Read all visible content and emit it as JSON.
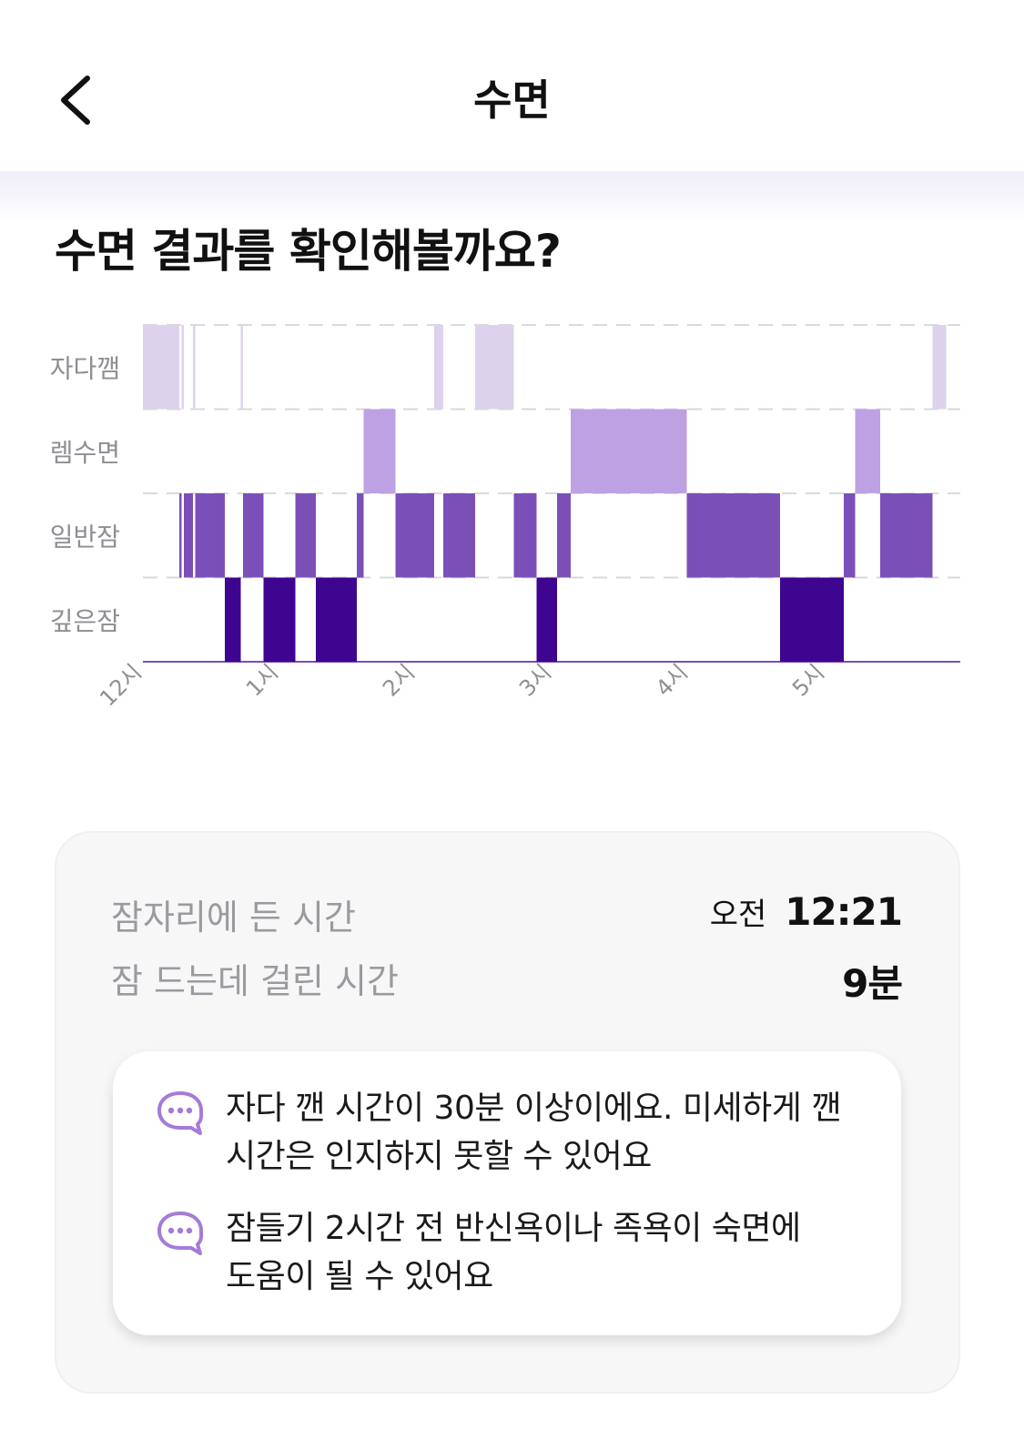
{
  "header": {
    "title": "수면",
    "back_icon": "chevron-left-icon"
  },
  "heading": "수면 결과를 확인해볼까요?",
  "chart_data": {
    "type": "hypnogram",
    "stages": [
      "자다깸",
      "렘수면",
      "일반잠",
      "깊은잠"
    ],
    "x_ticks": [
      "12시",
      "1시",
      "2시",
      "3시",
      "4시",
      "5시"
    ],
    "grid": true,
    "colors": {
      "자다깸": "#ddd2ec",
      "렘수면": "#bda1e2",
      "일반잠": "#7b4fb8",
      "깊은잠": "#3e0590"
    },
    "segments": [
      {
        "stage": "자다깸",
        "start": "00:00",
        "end": "00:16"
      },
      {
        "stage": "일반잠",
        "start": "00:16",
        "end": "00:17"
      },
      {
        "stage": "자다깸",
        "start": "00:17",
        "end": "00:18"
      },
      {
        "stage": "일반잠",
        "start": "00:18",
        "end": "00:22"
      },
      {
        "stage": "자다깸",
        "start": "00:22",
        "end": "00:23"
      },
      {
        "stage": "일반잠",
        "start": "00:23",
        "end": "00:36"
      },
      {
        "stage": "깊은잠",
        "start": "00:36",
        "end": "00:43"
      },
      {
        "stage": "자다깸",
        "start": "00:43",
        "end": "00:44"
      },
      {
        "stage": "일반잠",
        "start": "00:44",
        "end": "00:53"
      },
      {
        "stage": "깊은잠",
        "start": "00:53",
        "end": "01:07"
      },
      {
        "stage": "일반잠",
        "start": "01:07",
        "end": "01:16"
      },
      {
        "stage": "깊은잠",
        "start": "01:16",
        "end": "01:34"
      },
      {
        "stage": "일반잠",
        "start": "01:34",
        "end": "01:37"
      },
      {
        "stage": "렘수면",
        "start": "01:37",
        "end": "01:51"
      },
      {
        "stage": "일반잠",
        "start": "01:51",
        "end": "02:08"
      },
      {
        "stage": "자다깸",
        "start": "02:08",
        "end": "02:12"
      },
      {
        "stage": "일반잠",
        "start": "02:12",
        "end": "02:26"
      },
      {
        "stage": "자다깸",
        "start": "02:26",
        "end": "02:43"
      },
      {
        "stage": "일반잠",
        "start": "02:43",
        "end": "02:53"
      },
      {
        "stage": "깊은잠",
        "start": "02:53",
        "end": "03:02"
      },
      {
        "stage": "일반잠",
        "start": "03:02",
        "end": "03:08"
      },
      {
        "stage": "렘수면",
        "start": "03:08",
        "end": "03:59"
      },
      {
        "stage": "일반잠",
        "start": "03:59",
        "end": "04:40"
      },
      {
        "stage": "깊은잠",
        "start": "04:40",
        "end": "05:08"
      },
      {
        "stage": "일반잠",
        "start": "05:08",
        "end": "05:13"
      },
      {
        "stage": "렘수면",
        "start": "05:13",
        "end": "05:24"
      },
      {
        "stage": "일반잠",
        "start": "05:24",
        "end": "05:47"
      },
      {
        "stage": "자다깸",
        "start": "05:47",
        "end": "05:53"
      }
    ]
  },
  "summary": {
    "bedtime_label": "잠자리에 든 시간",
    "bedtime_ampm": "오전",
    "bedtime_value": "12:21",
    "latency_label": "잠 드는데 걸린 시간",
    "latency_value": "9분"
  },
  "tips": [
    {
      "icon": "chat-bubble-icon",
      "lines": [
        "자다 깬 시간이 30분 이상이에요. 미세하게 깬",
        "시간은 인지하지 못할 수 있어요"
      ]
    },
    {
      "icon": "chat-bubble-icon",
      "lines": [
        "잠들기 2시간 전 반신욕이나 족욕이 숙면에",
        "도움이 될 수 있어요"
      ]
    }
  ]
}
